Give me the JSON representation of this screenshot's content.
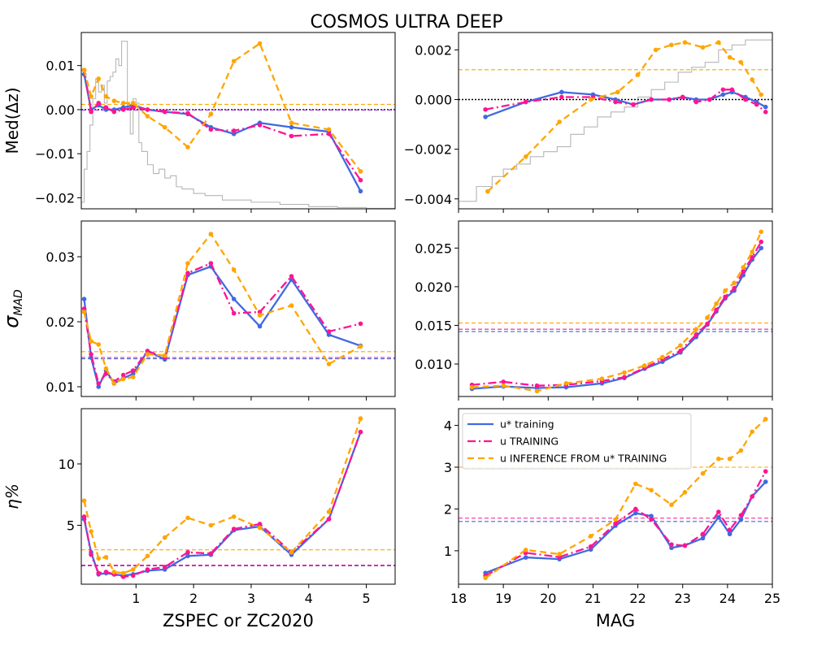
{
  "figure": {
    "title": "COSMOS ULTRA DEEP",
    "legend": [
      {
        "label": "u* training",
        "color": "#4169e1",
        "dash": "solid"
      },
      {
        "label": "u TRAINING",
        "color": "#ff1493",
        "dash": "dashdot"
      },
      {
        "label": "u INFERENCE FROM u* TRAINING",
        "color": "#ffa500",
        "dash": "dashed"
      }
    ],
    "colors": {
      "ustar": "#4169e1",
      "u": "#ff1493",
      "inference": "#ffa500",
      "hist": "#a9a9a9",
      "reference": "#000000",
      "ref_blue": "#4169e1",
      "ref_magenta": "#9932cc"
    }
  },
  "chart_data": [
    {
      "type": "line",
      "panel": "top-left",
      "ylabel": "Med(Δz)",
      "xlabel": "",
      "xlim": [
        0.05,
        5.5
      ],
      "ylim": [
        -0.0225,
        0.0175
      ],
      "xticks": [
        1,
        2,
        3,
        4,
        5
      ],
      "xtick_labels": [
        "",
        "",
        "",
        "",
        ""
      ],
      "yticks": [
        0.01,
        0.0,
        -0.01,
        -0.02
      ],
      "ytick_labels": [
        "0.01",
        "0.00",
        "−0.01",
        "−0.02"
      ],
      "x": [
        0.1,
        0.22,
        0.35,
        0.48,
        0.62,
        0.78,
        0.95,
        1.2,
        1.5,
        1.9,
        2.3,
        2.7,
        3.15,
        3.7,
        4.35,
        4.9
      ],
      "series": [
        {
          "name": "u* training",
          "values": [
            0.008,
            0.0,
            0.001,
            0.0,
            0.0,
            0.0005,
            0.001,
            0.0,
            -0.0005,
            -0.001,
            -0.004,
            -0.0055,
            -0.003,
            -0.004,
            -0.005,
            -0.0185
          ]
        },
        {
          "name": "u TRAINING",
          "values": [
            0.009,
            -0.0005,
            0.0015,
            0.0005,
            -0.0005,
            0.0,
            0.0005,
            0.0,
            -0.0005,
            -0.0008,
            -0.0045,
            -0.0048,
            -0.0035,
            -0.006,
            -0.0055,
            -0.016
          ]
        },
        {
          "name": "u INFERENCE FROM u* TRAINING",
          "values": [
            0.009,
            0.003,
            0.007,
            0.003,
            0.002,
            0.0015,
            0.0015,
            -0.0015,
            -0.004,
            -0.0085,
            -0.001,
            0.011,
            0.015,
            -0.003,
            -0.0045,
            -0.014
          ]
        }
      ],
      "reference_lines": [
        {
          "y": 0.0012,
          "color": "#ffa500",
          "style": "dashed"
        },
        {
          "y": 0.0,
          "color": "#000000",
          "style": "dotted"
        },
        {
          "y": -0.0001,
          "color": "#9932cc",
          "style": "dashed"
        }
      ],
      "histogram": {
        "edges": [
          0.05,
          0.1,
          0.15,
          0.2,
          0.25,
          0.3,
          0.35,
          0.4,
          0.45,
          0.5,
          0.55,
          0.6,
          0.65,
          0.7,
          0.75,
          0.8,
          0.85,
          0.9,
          0.95,
          1.0,
          1.05,
          1.1,
          1.2,
          1.3,
          1.4,
          1.5,
          1.6,
          1.7,
          1.8,
          2.0,
          2.2,
          2.5,
          3.0,
          3.5,
          4.0,
          4.5,
          5.0,
          5.5
        ],
        "values": [
          -0.021,
          -0.0135,
          -0.0095,
          -0.0035,
          0.0025,
          0.007,
          0.004,
          0.0055,
          0.0015,
          0.0065,
          0.0075,
          0.0085,
          0.0115,
          0.01,
          0.0155,
          0.0155,
          0.0,
          -0.0055,
          0.0025,
          0.0015,
          -0.0075,
          -0.0095,
          -0.0125,
          -0.0145,
          -0.0135,
          -0.0155,
          -0.015,
          -0.0175,
          -0.018,
          -0.019,
          -0.0195,
          -0.0205,
          -0.021,
          -0.0215,
          -0.022,
          -0.0222,
          -0.0224
        ]
      }
    },
    {
      "type": "line",
      "panel": "top-right",
      "ylabel": "",
      "xlabel": "",
      "xlim": [
        18,
        25
      ],
      "ylim": [
        -0.0044,
        0.0027
      ],
      "xticks": [
        18,
        19,
        20,
        21,
        22,
        23,
        24,
        25
      ],
      "xtick_labels": [
        "",
        "",
        "",
        "",
        "",
        "",
        "",
        ""
      ],
      "yticks": [
        0.002,
        0.0,
        -0.002,
        -0.004
      ],
      "ytick_labels": [
        "0.002",
        "0.000",
        "−0.002",
        "−0.004"
      ],
      "series": [
        {
          "name": "u* training",
          "x": [
            18.6,
            19.5,
            20.3,
            21.0,
            21.5,
            21.9,
            22.3,
            22.7,
            23.0,
            23.3,
            23.6,
            23.9,
            24.1,
            24.4,
            24.65,
            24.85
          ],
          "values": [
            -0.0007,
            -0.0001,
            0.0003,
            0.0002,
            0.0,
            -0.0002,
            0.0,
            0.0,
            0.0001,
            0.0,
            0.0,
            0.0002,
            0.0003,
            0.0001,
            -0.0001,
            -0.0003
          ]
        },
        {
          "name": "u TRAINING",
          "x": [
            18.6,
            19.5,
            20.3,
            21.0,
            21.5,
            21.9,
            22.3,
            22.7,
            23.0,
            23.3,
            23.6,
            23.9,
            24.1,
            24.4,
            24.65,
            24.85
          ],
          "values": [
            -0.0004,
            -0.0001,
            0.0001,
            0.0001,
            -0.0001,
            -0.0002,
            0.0,
            0.0,
            0.0001,
            -0.0001,
            0.0,
            0.0004,
            0.0004,
            0.0,
            -0.0002,
            -0.0005
          ]
        },
        {
          "name": "u INFERENCE FROM u* TRAINING",
          "x": [
            18.65,
            19.5,
            20.25,
            20.95,
            21.55,
            22.0,
            22.4,
            22.75,
            23.05,
            23.45,
            23.8,
            24.05,
            24.3,
            24.55,
            24.75
          ],
          "values": [
            -0.0037,
            -0.0023,
            -0.0009,
            0.0,
            0.0003,
            0.001,
            0.002,
            0.0022,
            0.0023,
            0.0021,
            0.0023,
            0.0017,
            0.0015,
            0.0008,
            0.0002
          ]
        }
      ],
      "reference_lines": [
        {
          "y": 0.0012,
          "color": "#ffa500",
          "style": "dashed"
        },
        {
          "y": 0.0,
          "color": "#000000",
          "style": "dotted"
        }
      ],
      "histogram": {
        "edges": [
          18.0,
          18.4,
          18.75,
          19.0,
          19.3,
          19.6,
          19.9,
          20.2,
          20.5,
          20.8,
          21.1,
          21.4,
          21.7,
          22.0,
          22.3,
          22.6,
          22.9,
          23.2,
          23.5,
          23.8,
          24.1,
          24.4,
          24.7,
          25.0
        ],
        "values": [
          -0.0041,
          -0.0035,
          -0.0031,
          -0.0028,
          -0.0026,
          -0.0023,
          -0.0021,
          -0.0019,
          -0.0014,
          -0.0011,
          -0.0007,
          -0.0005,
          -0.0003,
          0.0001,
          0.0004,
          0.0007,
          0.0011,
          0.0013,
          0.0015,
          0.002,
          0.0022,
          0.0024,
          0.0024
        ]
      }
    },
    {
      "type": "line",
      "panel": "middle-left",
      "ylabel": "σ_MAD",
      "xlabel": "",
      "xlim": [
        0.05,
        5.5
      ],
      "ylim": [
        0.0085,
        0.0355
      ],
      "xticks": [
        1,
        2,
        3,
        4,
        5
      ],
      "xtick_labels": [
        "",
        "",
        "",
        "",
        ""
      ],
      "yticks": [
        0.03,
        0.02,
        0.01
      ],
      "ytick_labels": [
        "0.03",
        "0.02",
        "0.01"
      ],
      "x": [
        0.1,
        0.22,
        0.35,
        0.48,
        0.62,
        0.78,
        0.95,
        1.2,
        1.5,
        1.9,
        2.3,
        2.7,
        3.15,
        3.7,
        4.35,
        4.9
      ],
      "series": [
        {
          "name": "u* training",
          "values": [
            0.0235,
            0.0145,
            0.01,
            0.0125,
            0.0105,
            0.0113,
            0.012,
            0.0155,
            0.0142,
            0.0272,
            0.0285,
            0.0235,
            0.0193,
            0.0265,
            0.018,
            0.0163
          ]
        },
        {
          "name": "u TRAINING",
          "values": [
            0.022,
            0.015,
            0.0105,
            0.012,
            0.0108,
            0.0118,
            0.0125,
            0.0155,
            0.0145,
            0.0275,
            0.029,
            0.0213,
            0.0215,
            0.027,
            0.0185,
            0.0197
          ]
        },
        {
          "name": "u INFERENCE FROM u* TRAINING",
          "values": [
            0.0215,
            0.017,
            0.0165,
            0.0128,
            0.0105,
            0.0112,
            0.0115,
            0.015,
            0.0148,
            0.029,
            0.0335,
            0.028,
            0.021,
            0.0225,
            0.0135,
            0.0162
          ]
        }
      ],
      "reference_lines": [
        {
          "y": 0.0154,
          "color": "#ffa500",
          "style": "dashed"
        },
        {
          "y": 0.0145,
          "color": "#ff1493",
          "style": "dashed"
        },
        {
          "y": 0.0143,
          "color": "#4169e1",
          "style": "dashed"
        }
      ]
    },
    {
      "type": "line",
      "panel": "middle-right",
      "ylabel": "",
      "xlabel": "",
      "xlim": [
        18,
        25
      ],
      "ylim": [
        0.0058,
        0.0285
      ],
      "xticks": [
        18,
        19,
        20,
        21,
        22,
        23,
        24,
        25
      ],
      "xtick_labels": [
        "",
        "",
        "",
        "",
        "",
        "",
        "",
        ""
      ],
      "yticks": [
        0.025,
        0.02,
        0.015,
        0.01
      ],
      "ytick_labels": [
        "0.025",
        "0.020",
        "0.015",
        "0.010"
      ],
      "series": [
        {
          "name": "u* training",
          "x": [
            18.3,
            19.0,
            19.75,
            20.4,
            21.2,
            21.7,
            22.15,
            22.55,
            22.95,
            23.3,
            23.55,
            23.75,
            23.95,
            24.15,
            24.35,
            24.55,
            24.75
          ],
          "values": [
            0.0068,
            0.0071,
            0.0069,
            0.007,
            0.0075,
            0.0082,
            0.0094,
            0.0103,
            0.0115,
            0.0135,
            0.0151,
            0.0168,
            0.0185,
            0.0195,
            0.0215,
            0.0235,
            0.025
          ]
        },
        {
          "name": "u TRAINING",
          "x": [
            18.3,
            19.0,
            19.75,
            20.4,
            21.2,
            21.7,
            22.15,
            22.55,
            22.95,
            23.3,
            23.55,
            23.75,
            23.95,
            24.15,
            24.35,
            24.55,
            24.75
          ],
          "values": [
            0.0073,
            0.0077,
            0.0072,
            0.0073,
            0.0078,
            0.0083,
            0.0095,
            0.0106,
            0.0117,
            0.0138,
            0.0152,
            0.017,
            0.0187,
            0.0198,
            0.022,
            0.0238,
            0.0258
          ]
        },
        {
          "name": "u INFERENCE FROM u* TRAINING",
          "x": [
            18.3,
            19.0,
            19.75,
            20.4,
            21.2,
            21.7,
            22.15,
            22.55,
            22.95,
            23.3,
            23.55,
            23.75,
            23.95,
            24.15,
            24.35,
            24.55,
            24.75
          ],
          "values": [
            0.007,
            0.0072,
            0.0065,
            0.0075,
            0.0081,
            0.0089,
            0.0098,
            0.0109,
            0.0124,
            0.0145,
            0.016,
            0.0178,
            0.0195,
            0.0205,
            0.0225,
            0.0245,
            0.0271
          ]
        }
      ],
      "reference_lines": [
        {
          "y": 0.0153,
          "color": "#ffa500",
          "style": "dashed"
        },
        {
          "y": 0.0145,
          "color": "#ff1493",
          "style": "dashed"
        },
        {
          "y": 0.0142,
          "color": "#4169e1",
          "style": "dashed"
        }
      ]
    },
    {
      "type": "line",
      "panel": "bottom-left",
      "ylabel": "η%",
      "xlabel": "ZSPEC or ZC2020",
      "xlim": [
        0.05,
        5.5
      ],
      "ylim": [
        0.2,
        14.5
      ],
      "xticks": [
        1,
        2,
        3,
        4,
        5
      ],
      "xtick_labels": [
        "1",
        "2",
        "3",
        "4",
        "5"
      ],
      "yticks": [
        10,
        5
      ],
      "ytick_labels": [
        "10",
        "5"
      ],
      "x": [
        0.1,
        0.22,
        0.35,
        0.48,
        0.62,
        0.78,
        0.95,
        1.2,
        1.5,
        1.9,
        2.3,
        2.7,
        3.15,
        3.7,
        4.35,
        4.9
      ],
      "series": [
        {
          "name": "u* training",
          "values": [
            5.5,
            2.8,
            1.0,
            1.1,
            1.0,
            0.9,
            1.0,
            1.3,
            1.4,
            2.5,
            2.6,
            4.6,
            4.9,
            2.6,
            5.5,
            12.6
          ]
        },
        {
          "name": "u TRAINING",
          "values": [
            5.7,
            2.6,
            1.1,
            1.2,
            1.0,
            0.8,
            0.9,
            1.4,
            1.6,
            2.8,
            2.7,
            4.7,
            5.1,
            2.8,
            5.5,
            12.6
          ]
        },
        {
          "name": "u INFERENCE FROM u* TRAINING",
          "values": [
            7.0,
            4.5,
            2.3,
            2.4,
            1.2,
            1.1,
            1.4,
            2.5,
            4.0,
            5.6,
            5.0,
            5.7,
            4.8,
            2.8,
            6.1,
            13.7
          ]
        }
      ],
      "reference_lines": [
        {
          "y": 3.0,
          "color": "#ffa500",
          "style": "dashed"
        },
        {
          "y": 1.75,
          "color": "#ff1493",
          "style": "dashed"
        },
        {
          "y": 1.7,
          "color": "#9932cc",
          "style": "dashed"
        }
      ]
    },
    {
      "type": "line",
      "panel": "bottom-right",
      "ylabel": "",
      "xlabel": "MAG",
      "xlim": [
        18,
        25
      ],
      "ylim": [
        0.2,
        4.4
      ],
      "xticks": [
        18,
        19,
        20,
        21,
        22,
        23,
        24,
        25
      ],
      "xtick_labels": [
        "18",
        "19",
        "20",
        "21",
        "22",
        "23",
        "24",
        "25"
      ],
      "yticks": [
        4,
        3,
        2,
        1
      ],
      "ytick_labels": [
        "4",
        "3",
        "2",
        "1"
      ],
      "series": [
        {
          "name": "u* training",
          "x": [
            18.6,
            19.5,
            20.25,
            20.95,
            21.5,
            21.95,
            22.3,
            22.75,
            23.05,
            23.45,
            23.8,
            24.05,
            24.3,
            24.55,
            24.85
          ],
          "values": [
            0.47,
            0.84,
            0.8,
            1.03,
            1.6,
            1.9,
            1.83,
            1.07,
            1.13,
            1.3,
            1.8,
            1.4,
            1.75,
            2.3,
            2.65
          ]
        },
        {
          "name": "u TRAINING",
          "x": [
            18.6,
            19.5,
            20.25,
            20.95,
            21.5,
            21.95,
            22.3,
            22.75,
            23.05,
            23.45,
            23.8,
            24.05,
            24.3,
            24.55,
            24.85
          ],
          "values": [
            0.4,
            0.95,
            0.85,
            1.1,
            1.65,
            2.0,
            1.75,
            1.15,
            1.12,
            1.4,
            1.93,
            1.5,
            1.85,
            2.3,
            2.9
          ]
        },
        {
          "name": "u INFERENCE FROM u* TRAINING",
          "x": [
            18.6,
            19.5,
            20.25,
            20.95,
            21.5,
            21.95,
            22.3,
            22.75,
            23.05,
            23.45,
            23.8,
            24.05,
            24.3,
            24.55,
            24.85
          ],
          "values": [
            0.35,
            1.02,
            0.92,
            1.35,
            1.75,
            2.6,
            2.45,
            2.1,
            2.4,
            2.85,
            3.2,
            3.2,
            3.4,
            3.85,
            4.15
          ]
        }
      ],
      "reference_lines": [
        {
          "y": 3.0,
          "color": "#ffa500",
          "style": "dashed"
        },
        {
          "y": 1.78,
          "color": "#ff1493",
          "style": "dashed"
        },
        {
          "y": 1.7,
          "color": "#4169e1",
          "style": "dashed"
        }
      ]
    }
  ]
}
